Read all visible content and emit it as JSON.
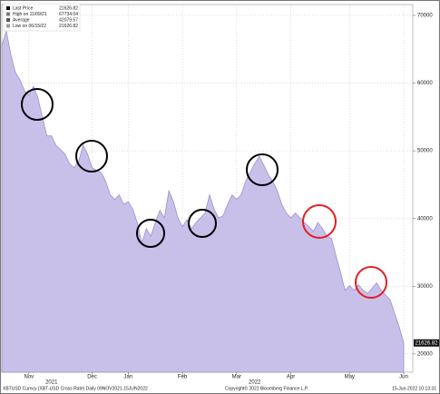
{
  "chart_data": {
    "type": "area",
    "series": [
      {
        "name": "XBTUSD",
        "color": "#c9c0ea",
        "values": [
          65600,
          67700,
          64200,
          61600,
          60500,
          58900,
          58200,
          59500,
          57800,
          54900,
          52200,
          52200,
          50800,
          50200,
          49500,
          48100,
          47500,
          48400,
          50800,
          49500,
          47500,
          47100,
          46800,
          45500,
          43500,
          42800,
          43500,
          42100,
          42500,
          41400,
          39400,
          36400,
          38500,
          37400,
          39400,
          41200,
          40100,
          44100,
          42500,
          40100,
          38800,
          39800,
          38500,
          39400,
          40100,
          40800,
          43500,
          41400,
          40100,
          40400,
          42100,
          43500,
          42800,
          43500,
          45500,
          46800,
          48100,
          49200,
          47900,
          46500,
          45500,
          44100,
          42100,
          40800,
          40100,
          40800,
          40100,
          39400,
          38800,
          38100,
          39400,
          38500,
          37400,
          37100,
          34500,
          32100,
          29400,
          30100,
          29400,
          30200,
          29400,
          28900,
          29700,
          30500,
          29400,
          28700,
          28000,
          26000,
          24000,
          21626.82
        ]
      }
    ],
    "legend": [
      {
        "name": "Last Price",
        "value": 21626.82
      },
      {
        "name": "High on 11/09/21",
        "value": 67734.04
      },
      {
        "name": "Average",
        "value": 42079.57
      },
      {
        "name": "Low on 06/15/22",
        "value": 21626.82
      }
    ],
    "ylim": [
      17300,
      71600
    ],
    "yticks": [
      20000,
      30000,
      40000,
      50000,
      60000,
      70000
    ],
    "xlim": [
      0,
      89
    ],
    "xticks": [
      {
        "value": 6,
        "label": "Nov"
      },
      {
        "value": 20,
        "label": "Dec"
      },
      {
        "value": 28,
        "label": "Jan"
      },
      {
        "value": 40,
        "label": "Feb"
      },
      {
        "value": 52,
        "label": "Mar"
      },
      {
        "value": 64,
        "label": "Apr"
      },
      {
        "value": 77,
        "label": "May"
      },
      {
        "value": 89,
        "label": "Jun"
      }
    ],
    "year_ticks": [
      {
        "value": 11,
        "label": "2021"
      },
      {
        "value": 56,
        "label": "2022"
      }
    ],
    "grid": true,
    "footer": {
      "left": "XBTUSD Curncy (XBT-USD Cross Rate)  Daily 09NOV2021-15JUN2022",
      "center": "Copyright© 2022 Bloomberg Finance L.P.",
      "right": "15-Jun-2022 10:13:31"
    }
  }
}
